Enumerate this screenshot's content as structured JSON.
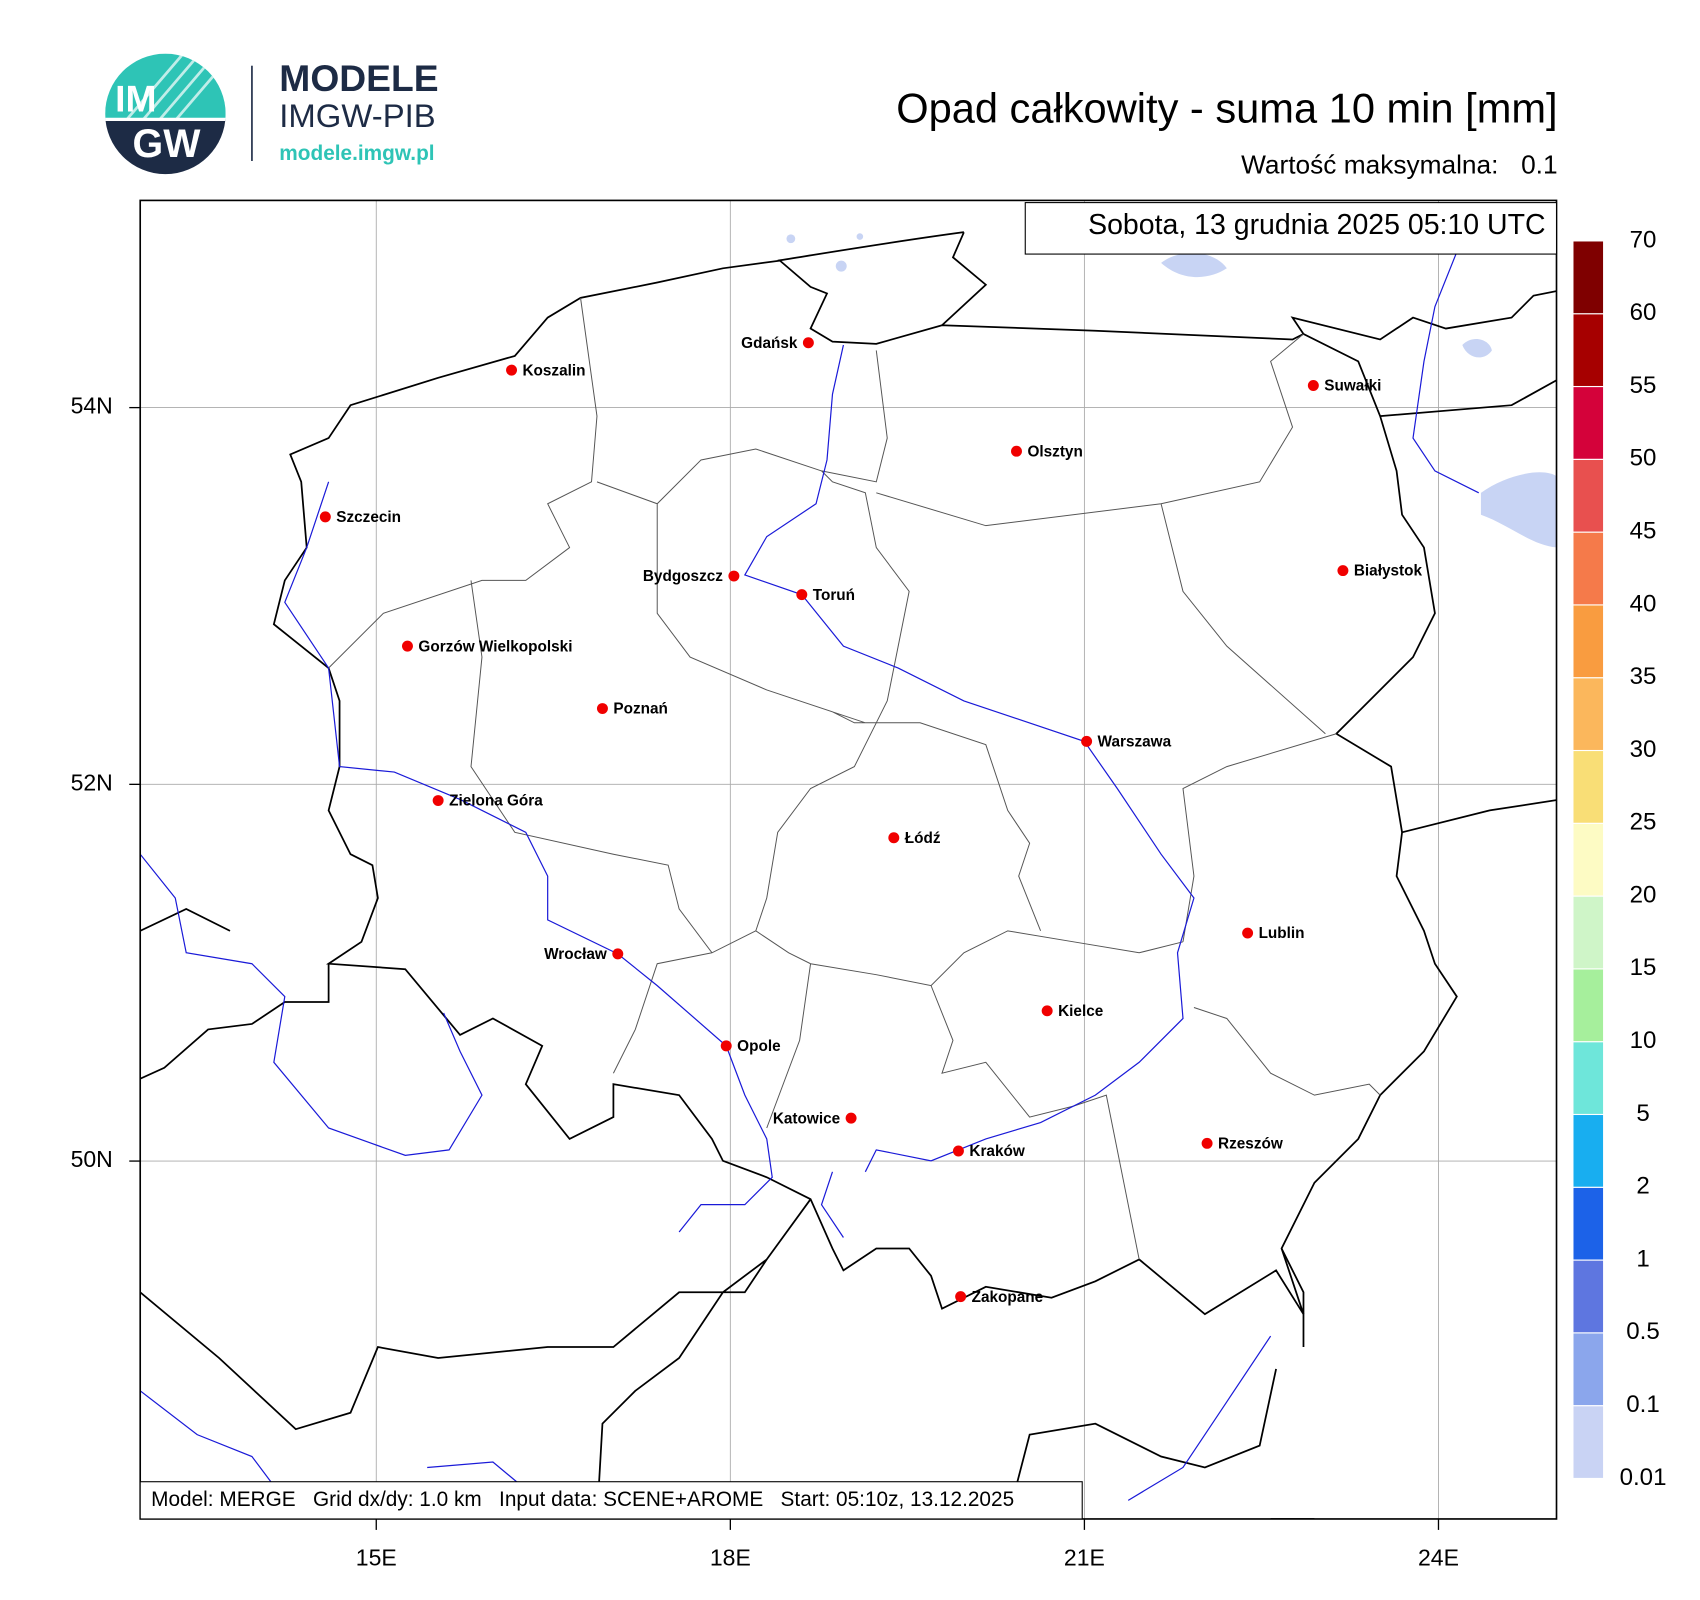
{
  "logo": {
    "line1": "IM",
    "line2": "GW",
    "name": "MODELE",
    "org": "IMGW-PIB",
    "url": "modele.imgw.pl"
  },
  "chart_data": {
    "type": "map",
    "title": "Opad całkowity - suma 10 min [mm]",
    "max_label": "Wartość maksymalna:",
    "max_value": 0.1,
    "timestamp": "Sobota, 13 grudnia 2025 05:10 UTC",
    "footer": "Model: MERGE   Grid dx/dy: 1.0 km   Input data: SCENE+AROME   Start: 05:10z, 13.12.2025",
    "xlim": [
      13,
      25
    ],
    "ylim": [
      48.1,
      55.1
    ],
    "xticks": [
      {
        "value": 15,
        "label": "15E"
      },
      {
        "value": 18,
        "label": "18E"
      },
      {
        "value": 21,
        "label": "21E"
      },
      {
        "value": 24,
        "label": "24E"
      }
    ],
    "yticks": [
      {
        "value": 50,
        "label": "50N"
      },
      {
        "value": 52,
        "label": "52N"
      },
      {
        "value": 54,
        "label": "54N"
      }
    ],
    "grid": true,
    "cities": [
      "Gdańsk",
      "Koszalin",
      "Suwałki",
      "Olsztyn",
      "Szczecin",
      "Białystok",
      "Bydgoszcz",
      "Toruń",
      "Gorzów Wielkopolski",
      "Poznań",
      "Warszawa",
      "Zielona Góra",
      "Łódź",
      "Lublin",
      "Wrocław",
      "Kielce",
      "Opole",
      "Katowice",
      "Rzeszów",
      "Kraków",
      "Zakopane"
    ],
    "colorbar": {
      "levels": [
        0.01,
        0.1,
        0.5,
        1,
        2,
        5,
        10,
        15,
        20,
        25,
        30,
        35,
        40,
        45,
        50,
        55,
        60,
        70
      ],
      "colors": [
        "#c9d3f4",
        "#8ba6ec",
        "#5e76e0",
        "#1c62e8",
        "#18aef0",
        "#6ee6da",
        "#a6ef9c",
        "#cff5c8",
        "#fdfbc4",
        "#f9de76",
        "#fbb75c",
        "#f99c40",
        "#f57a4a",
        "#e8504f",
        "#d4023a",
        "#a60000",
        "#7f0000"
      ]
    }
  }
}
